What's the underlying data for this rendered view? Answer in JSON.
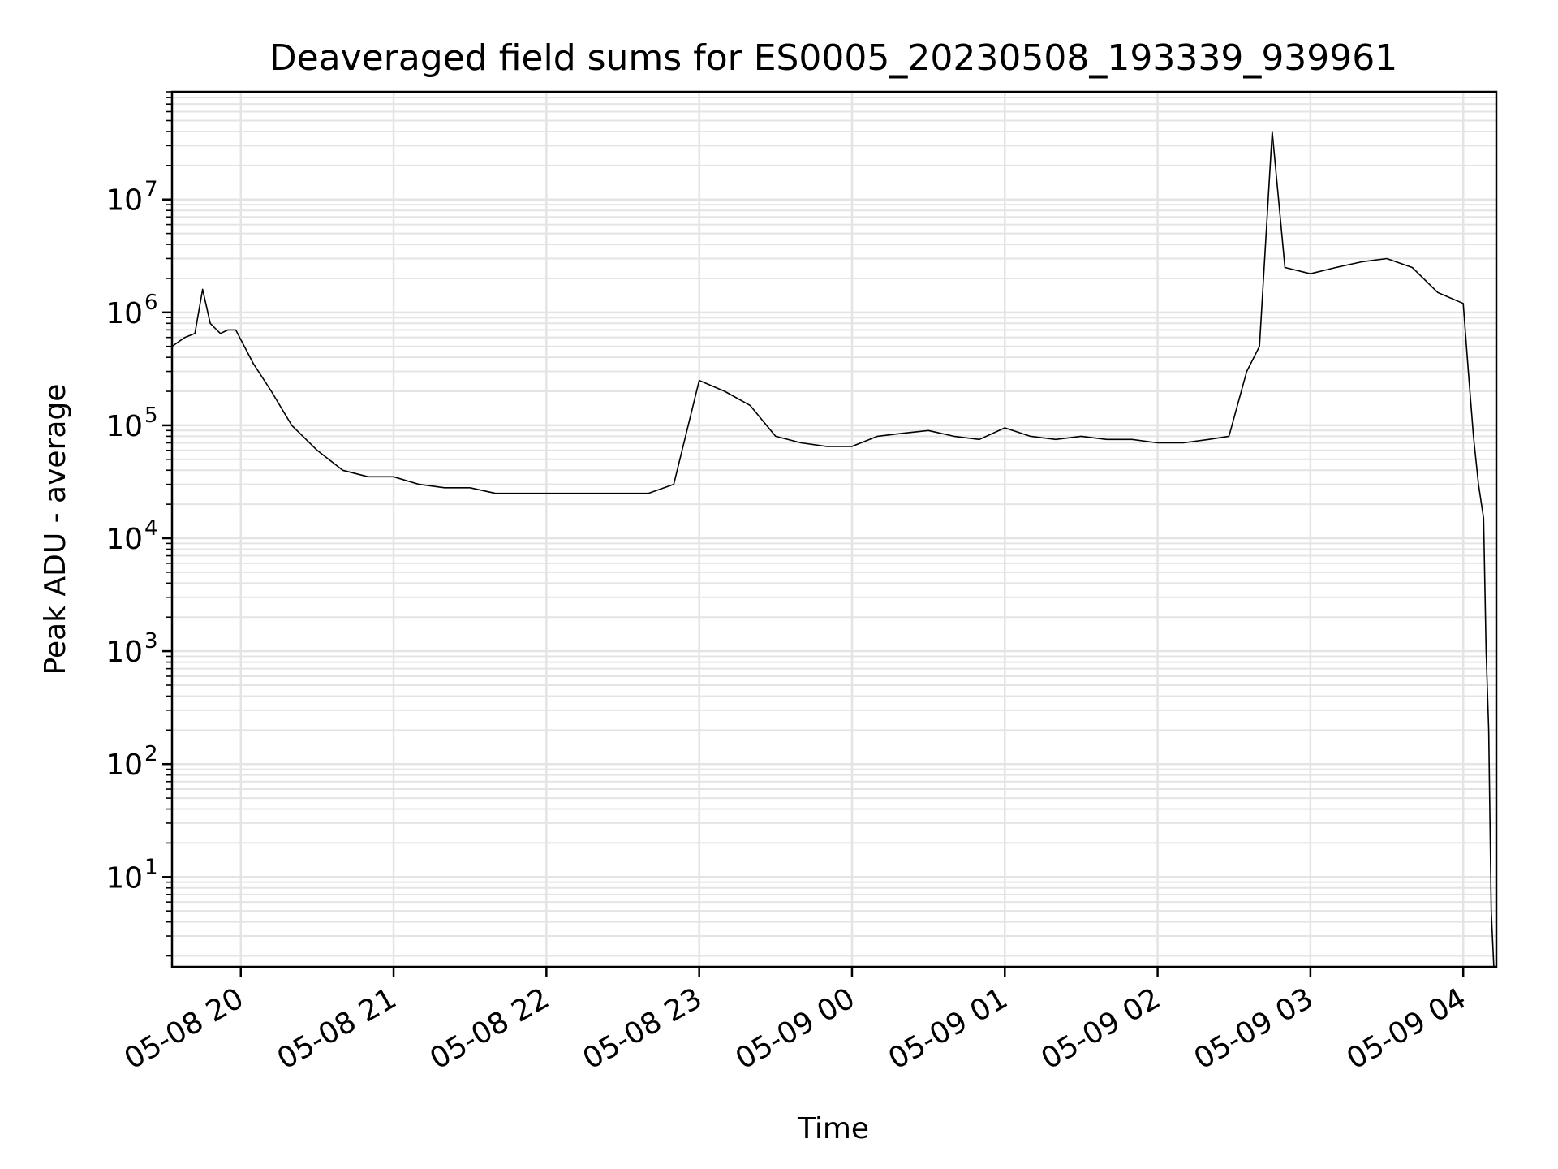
{
  "chart_data": {
    "type": "line",
    "title": "Deaveraged field sums for ES0005_20230508_193339_939961",
    "xlabel": "Time",
    "ylabel": "Peak ADU - average",
    "yscale": "log",
    "ylim": [
      1.6,
      90000000
    ],
    "xlim": [
      "2023-05-08 19:33",
      "2023-05-09 04:13"
    ],
    "grid": true,
    "line_color": "#000000",
    "x_ticks": [
      {
        "t": "2023-05-08 20:00",
        "label": "05-08 20"
      },
      {
        "t": "2023-05-08 21:00",
        "label": "05-08 21"
      },
      {
        "t": "2023-05-08 22:00",
        "label": "05-08 22"
      },
      {
        "t": "2023-05-08 23:00",
        "label": "05-08 23"
      },
      {
        "t": "2023-05-09 00:00",
        "label": "05-09 00"
      },
      {
        "t": "2023-05-09 01:00",
        "label": "05-09 01"
      },
      {
        "t": "2023-05-09 02:00",
        "label": "05-09 02"
      },
      {
        "t": "2023-05-09 03:00",
        "label": "05-09 03"
      },
      {
        "t": "2023-05-09 04:00",
        "label": "05-09 04"
      }
    ],
    "y_ticks": [
      {
        "value": 10,
        "base": "10",
        "exp": "1"
      },
      {
        "value": 100,
        "base": "10",
        "exp": "2"
      },
      {
        "value": 1000,
        "base": "10",
        "exp": "3"
      },
      {
        "value": 10000,
        "base": "10",
        "exp": "4"
      },
      {
        "value": 100000,
        "base": "10",
        "exp": "5"
      },
      {
        "value": 1000000,
        "base": "10",
        "exp": "6"
      },
      {
        "value": 10000000,
        "base": "10",
        "exp": "7"
      }
    ],
    "series": [
      {
        "x": [
          "2023-05-08 19:33",
          "2023-05-08 19:38",
          "2023-05-08 19:42",
          "2023-05-08 19:45",
          "2023-05-08 19:48",
          "2023-05-08 19:52",
          "2023-05-08 19:55",
          "2023-05-08 19:58",
          "2023-05-08 20:05",
          "2023-05-08 20:12",
          "2023-05-08 20:20",
          "2023-05-08 20:30",
          "2023-05-08 20:40",
          "2023-05-08 20:50",
          "2023-05-08 21:00",
          "2023-05-08 21:10",
          "2023-05-08 21:20",
          "2023-05-08 21:30",
          "2023-05-08 21:40",
          "2023-05-08 21:50",
          "2023-05-08 22:00",
          "2023-05-08 22:10",
          "2023-05-08 22:20",
          "2023-05-08 22:30",
          "2023-05-08 22:40",
          "2023-05-08 22:50",
          "2023-05-08 23:00",
          "2023-05-08 23:10",
          "2023-05-08 23:20",
          "2023-05-08 23:30",
          "2023-05-08 23:40",
          "2023-05-08 23:50",
          "2023-05-09 00:00",
          "2023-05-09 00:10",
          "2023-05-09 00:20",
          "2023-05-09 00:30",
          "2023-05-09 00:40",
          "2023-05-09 00:50",
          "2023-05-09 01:00",
          "2023-05-09 01:10",
          "2023-05-09 01:20",
          "2023-05-09 01:30",
          "2023-05-09 01:40",
          "2023-05-09 01:50",
          "2023-05-09 02:00",
          "2023-05-09 02:10",
          "2023-05-09 02:20",
          "2023-05-09 02:28",
          "2023-05-09 02:35",
          "2023-05-09 02:40",
          "2023-05-09 02:45",
          "2023-05-09 02:50",
          "2023-05-09 03:00",
          "2023-05-09 03:10",
          "2023-05-09 03:20",
          "2023-05-09 03:30",
          "2023-05-09 03:40",
          "2023-05-09 03:50",
          "2023-05-09 04:00",
          "2023-05-09 04:02",
          "2023-05-09 04:04",
          "2023-05-09 04:06",
          "2023-05-09 04:08",
          "2023-05-09 04:09",
          "2023-05-09 04:10",
          "2023-05-09 04:11",
          "2023-05-09 04:12"
        ],
        "y": [
          500000,
          600000,
          650000,
          1600000,
          800000,
          650000,
          700000,
          700000,
          350000,
          200000,
          100000,
          60000,
          40000,
          35000,
          35000,
          30000,
          28000,
          28000,
          25000,
          25000,
          25000,
          25000,
          25000,
          25000,
          25000,
          30000,
          250000,
          200000,
          150000,
          80000,
          70000,
          65000,
          65000,
          80000,
          85000,
          90000,
          80000,
          75000,
          95000,
          80000,
          75000,
          80000,
          75000,
          75000,
          70000,
          70000,
          75000,
          80000,
          300000,
          500000,
          40000000,
          2500000,
          2200000,
          2500000,
          2800000,
          3000000,
          2500000,
          1500000,
          1200000,
          300000,
          80000,
          30000,
          15000,
          1000,
          200,
          5,
          1.6
        ]
      }
    ]
  }
}
